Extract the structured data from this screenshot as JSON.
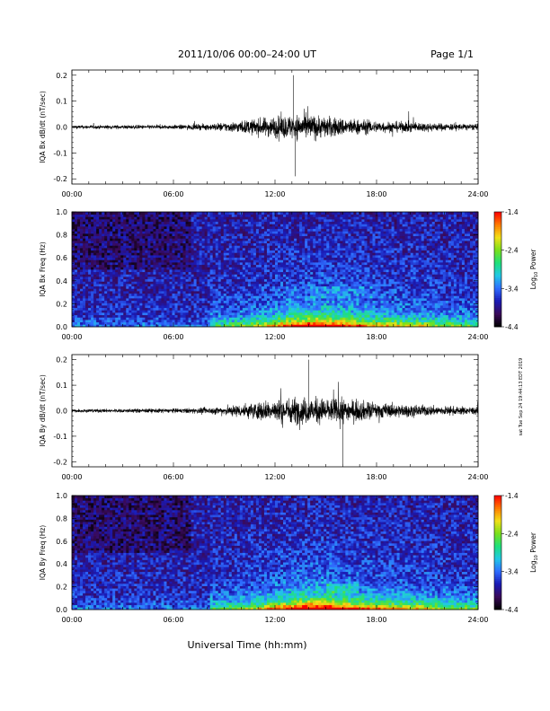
{
  "header": {
    "date_range": "2011/10/06  00:00–24:00 UT",
    "page": "Page 1/1"
  },
  "footer_xlabel": "Universal Time (hh:mm)",
  "side_stamp": "sat Tue Sep 24 19:44:13 EDT 2019",
  "colors": {
    "trace": "#000000",
    "colormap": [
      "#000000",
      "#3a0a5a",
      "#1a1ab4",
      "#2f6cff",
      "#22c8e6",
      "#1fe07a",
      "#7ae01a",
      "#f2e018",
      "#ff7a00",
      "#ff0000"
    ]
  },
  "colorbar": {
    "label": "Log10 Power",
    "label_main": "Log",
    "label_sub": "10",
    "label_tail": " Power",
    "ticks": [
      "-1.4",
      "-2.4",
      "-3.4",
      "-4.4"
    ],
    "range": [
      -4.4,
      -1.4
    ]
  },
  "chart_data": [
    {
      "type": "line",
      "title": "",
      "ylabel": "IQA Bx dB/dt (nT/sec)",
      "xlabel": "",
      "xlim": [
        "00:00",
        "24:00"
      ],
      "xticks": [
        "00:00",
        "06:00",
        "12:00",
        "18:00",
        "24:00"
      ],
      "ylim": [
        -0.22,
        0.22
      ],
      "yticks": [
        "0.2",
        "0.1",
        "0.0",
        "-0.1",
        "-0.2"
      ],
      "series": [
        {
          "x_hours": [
            0,
            2,
            4,
            6,
            8,
            9,
            10,
            11,
            12,
            13,
            14,
            15,
            16,
            17,
            18,
            19,
            20,
            21,
            22,
            24
          ],
          "envelope_amplitude": [
            0.012,
            0.012,
            0.013,
            0.014,
            0.02,
            0.03,
            0.04,
            0.055,
            0.07,
            0.08,
            0.085,
            0.07,
            0.06,
            0.05,
            0.04,
            0.035,
            0.035,
            0.03,
            0.025,
            0.02
          ]
        }
      ],
      "peaks": [
        {
          "x_hour": 13.1,
          "y": 0.2
        },
        {
          "x_hour": 13.2,
          "y": -0.19
        }
      ]
    },
    {
      "type": "heatmap",
      "title": "",
      "ylabel": "IQA Bx Freq (Hz)",
      "xlabel": "",
      "xlim": [
        "00:00",
        "24:00"
      ],
      "xticks": [
        "00:00",
        "06:00",
        "12:00",
        "18:00",
        "24:00"
      ],
      "ylim": [
        0.0,
        1.0
      ],
      "yticks": [
        "1.0",
        "0.8",
        "0.6",
        "0.4",
        "0.2",
        "0.0"
      ],
      "zlim": [
        -4.4,
        -1.4
      ]
    },
    {
      "type": "line",
      "title": "",
      "ylabel": "IQA By dB/dt (nT/sec)",
      "xlabel": "",
      "xlim": [
        "00:00",
        "24:00"
      ],
      "xticks": [
        "00:00",
        "06:00",
        "12:00",
        "18:00",
        "24:00"
      ],
      "ylim": [
        -0.22,
        0.22
      ],
      "yticks": [
        "0.2",
        "0.1",
        "0.0",
        "-0.1",
        "-0.2"
      ],
      "series": [
        {
          "x_hours": [
            0,
            2,
            4,
            6,
            8,
            9,
            10,
            11,
            12,
            13,
            14,
            15,
            16,
            17,
            18,
            19,
            20,
            21,
            22,
            24
          ],
          "envelope_amplitude": [
            0.012,
            0.012,
            0.014,
            0.015,
            0.02,
            0.03,
            0.045,
            0.06,
            0.075,
            0.09,
            0.09,
            0.085,
            0.08,
            0.07,
            0.055,
            0.045,
            0.04,
            0.035,
            0.03,
            0.025
          ]
        }
      ],
      "peaks": [
        {
          "x_hour": 14.0,
          "y": 0.2
        },
        {
          "x_hour": 16.0,
          "y": -0.21
        }
      ]
    },
    {
      "type": "heatmap",
      "title": "",
      "ylabel": "IQA By Freq (Hz)",
      "xlabel": "Universal Time (hh:mm)",
      "xlim": [
        "00:00",
        "24:00"
      ],
      "xticks": [
        "00:00",
        "06:00",
        "12:00",
        "18:00",
        "24:00"
      ],
      "ylim": [
        0.0,
        1.0
      ],
      "yticks": [
        "1.0",
        "0.8",
        "0.6",
        "0.4",
        "0.2",
        "0.0"
      ],
      "zlim": [
        -4.4,
        -1.4
      ]
    }
  ]
}
